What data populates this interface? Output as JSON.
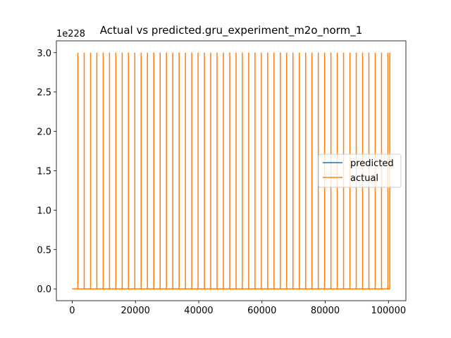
{
  "chart_data": {
    "type": "line",
    "title": "Actual vs predicted.gru_experiment_m2o_norm_1",
    "xlabel": "",
    "ylabel": "",
    "y_offset_label": "1e228",
    "xlim": [
      -5000,
      105500
    ],
    "ylim": [
      -0.15,
      3.15
    ],
    "x_ticks": [
      0,
      20000,
      40000,
      60000,
      80000,
      100000
    ],
    "x_tick_labels": [
      "0",
      "20000",
      "40000",
      "60000",
      "80000",
      "100000"
    ],
    "y_ticks": [
      0.0,
      0.5,
      1.0,
      1.5,
      2.0,
      2.5,
      3.0
    ],
    "y_tick_labels": [
      "0.0",
      "0.5",
      "1.0",
      "1.5",
      "2.0",
      "2.5",
      "3.0"
    ],
    "grid": false,
    "legend_position": "center-right",
    "series": [
      {
        "name": "predicted",
        "color": "#1f77b4",
        "x": [
          0,
          100500
        ],
        "values": [
          0,
          0
        ]
      },
      {
        "name": "actual",
        "color": "#ff7f0e",
        "x_start": 0,
        "x_end": 100500,
        "baseline": 0,
        "spike_value": 3.0,
        "spike_x": [
          1800,
          3800,
          5800,
          7800,
          9800,
          11800,
          13800,
          15800,
          17800,
          19800,
          21800,
          23800,
          25800,
          27800,
          29800,
          31800,
          33800,
          35800,
          37800,
          39800,
          41800,
          43800,
          45800,
          47800,
          49800,
          51800,
          53800,
          55800,
          57800,
          59800,
          61800,
          63800,
          65800,
          67800,
          69800,
          71800,
          73800,
          75800,
          77800,
          79800,
          81800,
          83800,
          85800,
          87800,
          89800,
          91800,
          93800,
          95800,
          97800,
          99800,
          100400
        ]
      }
    ]
  }
}
